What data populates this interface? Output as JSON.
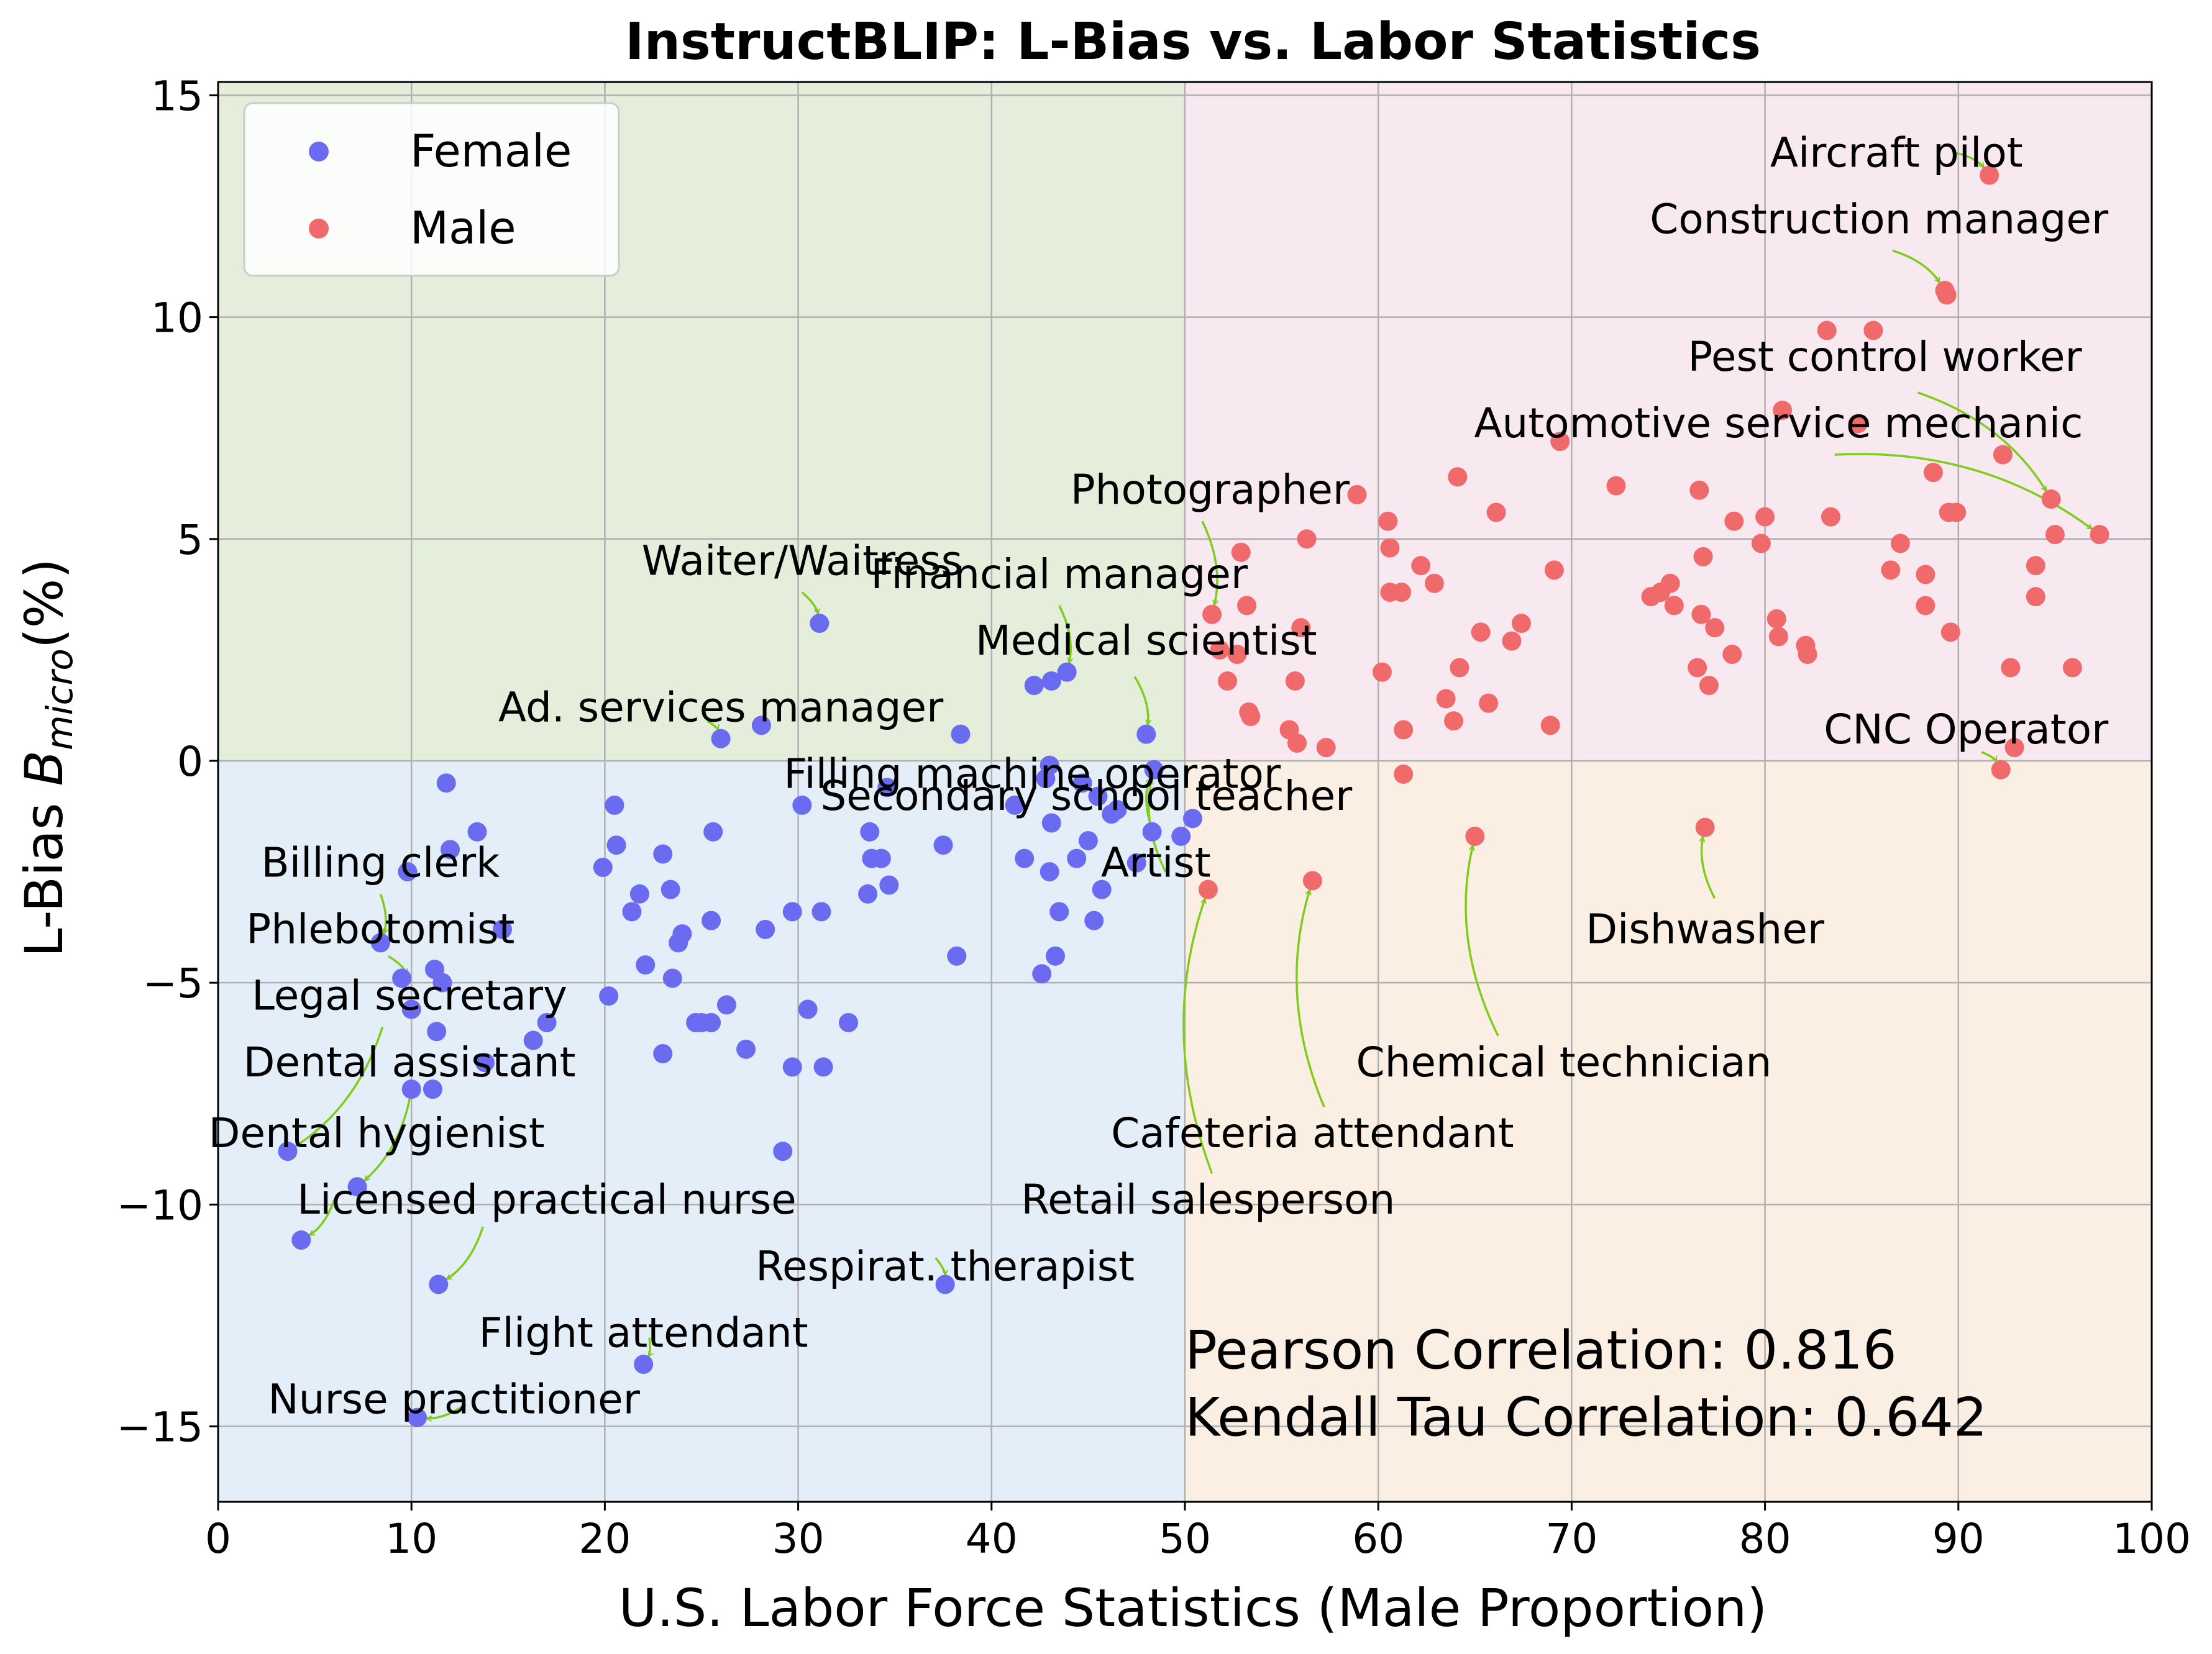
{
  "chart_data": {
    "type": "scatter",
    "title": "InstructBLIP: L-Bias vs. Labor Statistics",
    "xlabel": "U.S. Labor Force Statistics (Male Proportion)",
    "ylabel_main": "L-Bias  ",
    "ylabel_symbol": "B",
    "ylabel_sub": "micro",
    "ylabel_unit": "(%)",
    "xlim": [
      0,
      100
    ],
    "ylim": [
      -16.7,
      15.3
    ],
    "xticks": [
      0,
      10,
      20,
      30,
      40,
      50,
      60,
      70,
      80,
      90,
      100
    ],
    "yticks": [
      -15,
      -10,
      -5,
      0,
      5,
      10,
      15
    ],
    "ytick_labels": [
      "−15",
      "−10",
      "−5",
      "0",
      "5",
      "10",
      "15"
    ],
    "grid": true,
    "legend_position": "top-left",
    "quadrant_colors": {
      "top_left": "#e4eedb",
      "top_right": "#f8e8f0",
      "bottom_left": "#e3eef8",
      "bottom_right": "#faefe2"
    },
    "arrow_color": "#7fcc1a",
    "series": [
      {
        "name": "Female",
        "color": "#6b6bf2",
        "points": [
          [
            3.6,
            -8.8
          ],
          [
            4.3,
            -10.8
          ],
          [
            7.2,
            -9.6
          ],
          [
            8.4,
            -4.1
          ],
          [
            9.5,
            -4.9
          ],
          [
            9.8,
            -2.5
          ],
          [
            10.0,
            -5.6
          ],
          [
            10.0,
            -7.4
          ],
          [
            10.3,
            -14.8
          ],
          [
            11.1,
            -7.4
          ],
          [
            11.2,
            -4.7
          ],
          [
            11.3,
            -6.1
          ],
          [
            11.4,
            -11.8
          ],
          [
            11.6,
            -5.0
          ],
          [
            11.8,
            -0.5
          ],
          [
            12.0,
            -2.0
          ],
          [
            13.4,
            -1.6
          ],
          [
            13.8,
            -6.8
          ],
          [
            14.7,
            -3.8
          ],
          [
            16.3,
            -6.3
          ],
          [
            17.0,
            -5.9
          ],
          [
            19.9,
            -2.4
          ],
          [
            20.2,
            -5.3
          ],
          [
            20.5,
            -1.0
          ],
          [
            20.6,
            -1.9
          ],
          [
            21.4,
            -3.4
          ],
          [
            21.8,
            -3.0
          ],
          [
            22.0,
            -13.6
          ],
          [
            22.1,
            -4.6
          ],
          [
            23.0,
            -6.6
          ],
          [
            23.0,
            -2.1
          ],
          [
            23.4,
            -2.9
          ],
          [
            23.5,
            -4.9
          ],
          [
            23.8,
            -4.1
          ],
          [
            24.0,
            -3.9
          ],
          [
            24.7,
            -5.9
          ],
          [
            25.0,
            -5.9
          ],
          [
            25.5,
            -3.6
          ],
          [
            25.5,
            -5.9
          ],
          [
            25.6,
            -1.6
          ],
          [
            26.0,
            0.5
          ],
          [
            26.3,
            -5.5
          ],
          [
            27.3,
            -6.5
          ],
          [
            28.1,
            0.8
          ],
          [
            28.3,
            -3.8
          ],
          [
            29.2,
            -8.8
          ],
          [
            29.7,
            -6.9
          ],
          [
            29.7,
            -3.4
          ],
          [
            30.2,
            -1.0
          ],
          [
            30.5,
            -5.6
          ],
          [
            31.1,
            3.1
          ],
          [
            31.2,
            -3.4
          ],
          [
            31.3,
            -6.9
          ],
          [
            32.6,
            -5.9
          ],
          [
            33.6,
            -3.0
          ],
          [
            33.7,
            -1.6
          ],
          [
            33.8,
            -2.2
          ],
          [
            34.3,
            -2.2
          ],
          [
            34.6,
            -0.6
          ],
          [
            34.7,
            -2.8
          ],
          [
            37.5,
            -1.9
          ],
          [
            37.6,
            -11.8
          ],
          [
            38.2,
            -4.4
          ],
          [
            38.4,
            0.6
          ],
          [
            41.2,
            -1.0
          ],
          [
            41.7,
            -2.2
          ],
          [
            42.2,
            1.7
          ],
          [
            42.6,
            -4.8
          ],
          [
            42.8,
            -0.4
          ],
          [
            43.0,
            -2.5
          ],
          [
            43.1,
            1.8
          ],
          [
            43.1,
            -1.4
          ],
          [
            43.3,
            -4.4
          ],
          [
            43.5,
            -3.4
          ],
          [
            43.9,
            2.0
          ],
          [
            44.4,
            -2.2
          ],
          [
            44.7,
            -0.5
          ],
          [
            45.0,
            -1.8
          ],
          [
            45.3,
            -3.6
          ],
          [
            45.5,
            -0.8
          ],
          [
            45.7,
            -2.9
          ],
          [
            46.2,
            -1.2
          ],
          [
            46.5,
            -1.1
          ],
          [
            47.5,
            -2.3
          ],
          [
            48.3,
            -1.6
          ],
          [
            48.4,
            -0.2
          ],
          [
            49.8,
            -1.7
          ],
          [
            50.4,
            -1.3
          ],
          [
            48.0,
            0.6
          ],
          [
            43.0,
            -0.1
          ]
        ]
      },
      {
        "name": "Male",
        "color": "#f06a6c",
        "points": [
          [
            51.2,
            -2.9
          ],
          [
            51.4,
            3.3
          ],
          [
            51.8,
            2.5
          ],
          [
            52.2,
            1.8
          ],
          [
            52.7,
            2.4
          ],
          [
            52.9,
            4.7
          ],
          [
            53.2,
            3.5
          ],
          [
            53.3,
            1.1
          ],
          [
            53.4,
            1.0
          ],
          [
            55.4,
            0.7
          ],
          [
            55.7,
            1.8
          ],
          [
            55.8,
            0.4
          ],
          [
            56.0,
            3.0
          ],
          [
            56.3,
            5.0
          ],
          [
            56.6,
            -2.7
          ],
          [
            57.3,
            0.3
          ],
          [
            58.9,
            6.0
          ],
          [
            60.2,
            2.0
          ],
          [
            60.5,
            5.4
          ],
          [
            60.6,
            4.8
          ],
          [
            60.6,
            3.8
          ],
          [
            61.2,
            3.8
          ],
          [
            61.3,
            0.7
          ],
          [
            61.3,
            -0.3
          ],
          [
            62.2,
            4.4
          ],
          [
            62.9,
            4.0
          ],
          [
            63.5,
            1.4
          ],
          [
            63.9,
            0.9
          ],
          [
            64.1,
            6.4
          ],
          [
            64.2,
            2.1
          ],
          [
            65.0,
            -1.7
          ],
          [
            65.3,
            2.9
          ],
          [
            65.7,
            1.3
          ],
          [
            66.1,
            5.6
          ],
          [
            66.9,
            2.7
          ],
          [
            67.4,
            3.1
          ],
          [
            68.9,
            0.8
          ],
          [
            69.1,
            4.3
          ],
          [
            69.4,
            7.2
          ],
          [
            72.3,
            6.2
          ],
          [
            74.1,
            3.7
          ],
          [
            74.6,
            3.8
          ],
          [
            75.1,
            4.0
          ],
          [
            75.3,
            3.5
          ],
          [
            76.5,
            2.1
          ],
          [
            76.6,
            6.1
          ],
          [
            76.7,
            3.3
          ],
          [
            76.8,
            4.6
          ],
          [
            76.9,
            -1.5
          ],
          [
            77.1,
            1.7
          ],
          [
            77.4,
            3.0
          ],
          [
            78.3,
            2.4
          ],
          [
            78.4,
            5.4
          ],
          [
            79.8,
            4.9
          ],
          [
            80.0,
            5.5
          ],
          [
            80.6,
            3.2
          ],
          [
            80.7,
            2.8
          ],
          [
            80.9,
            7.9
          ],
          [
            82.1,
            2.6
          ],
          [
            82.2,
            2.4
          ],
          [
            83.2,
            9.7
          ],
          [
            83.4,
            5.5
          ],
          [
            84.8,
            7.6
          ],
          [
            85.6,
            9.7
          ],
          [
            86.5,
            4.3
          ],
          [
            87.0,
            4.9
          ],
          [
            88.3,
            3.5
          ],
          [
            88.3,
            4.2
          ],
          [
            88.7,
            6.5
          ],
          [
            89.3,
            10.6
          ],
          [
            89.4,
            10.5
          ],
          [
            89.5,
            5.6
          ],
          [
            89.6,
            2.9
          ],
          [
            89.9,
            5.6
          ],
          [
            91.6,
            13.2
          ],
          [
            92.2,
            -0.2
          ],
          [
            92.3,
            6.9
          ],
          [
            92.7,
            2.1
          ],
          [
            92.9,
            0.3
          ],
          [
            94.0,
            3.7
          ],
          [
            94.0,
            4.4
          ],
          [
            94.8,
            5.9
          ],
          [
            95.0,
            5.1
          ],
          [
            95.9,
            2.1
          ],
          [
            97.3,
            5.1
          ]
        ]
      }
    ],
    "annotations": [
      {
        "text": "Aircraft pilot",
        "text_x": 86.8,
        "text_y": 13.7,
        "x": 91.6,
        "y": 13.2,
        "ax0": 89.9,
        "ay0": 13.7
      },
      {
        "text": "Construction manager",
        "text_x": 85.9,
        "text_y": 12.2,
        "x": 89.3,
        "y": 10.6,
        "ax0": 86.6,
        "ay0": 11.5
      },
      {
        "text": "Pest control worker",
        "text_x": 86.2,
        "text_y": 9.1,
        "x": 94.8,
        "y": 5.9,
        "ax0": 87.9,
        "ay0": 8.3
      },
      {
        "text": "Automotive service mechanic",
        "text_x": 80.7,
        "text_y": 7.6,
        "x": 97.3,
        "y": 5.1,
        "ax0": 83.6,
        "ay0": 6.9
      },
      {
        "text": "Photographer",
        "text_x": 51.3,
        "text_y": 6.1,
        "x": 51.4,
        "y": 3.3,
        "ax0": 50.9,
        "ay0": 5.4
      },
      {
        "text": "Waiter/Waitress",
        "text_x": 30.2,
        "text_y": 4.5,
        "x": 31.1,
        "y": 3.1,
        "ax0": 30.2,
        "ay0": 3.8
      },
      {
        "text": "Financial manager",
        "text_x": 43.5,
        "text_y": 4.2,
        "x": 43.9,
        "y": 2.0,
        "ax0": 43.5,
        "ay0": 3.5
      },
      {
        "text": "Medical scientist",
        "text_x": 48.0,
        "text_y": 2.7,
        "x": 48.0,
        "y": 0.6,
        "ax0": 47.4,
        "ay0": 1.9
      },
      {
        "text": "Ad. services manager",
        "text_x": 26.0,
        "text_y": 1.2,
        "x": 26.0,
        "y": 0.5,
        "ax0": 25.3,
        "ay0": 0.9
      },
      {
        "text": "CNC Operator",
        "text_x": 90.4,
        "text_y": 0.7,
        "x": 92.2,
        "y": -0.2,
        "ax0": 91.2,
        "ay0": 0.2
      },
      {
        "text": "Filling machine operator",
        "text_x": 42.1,
        "text_y": -0.3,
        "x": 42.8,
        "y": -0.4,
        "ax0": 42.8,
        "ay0": -0.5
      },
      {
        "text": "Secondary school teacher",
        "text_x": 44.9,
        "text_y": -0.8,
        "x": 48.4,
        "y": -0.2,
        "ax0": 48.2,
        "ay0": -1.4
      },
      {
        "text": "Artist",
        "text_x": 48.5,
        "text_y": -2.3,
        "x": 48.4,
        "y": -0.2,
        "ax0": 49.0,
        "ay0": -2.5
      },
      {
        "text": "Billing clerk",
        "text_x": 8.4,
        "text_y": -2.3,
        "x": 8.4,
        "y": -4.1,
        "ax0": 8.4,
        "ay0": -3.0
      },
      {
        "text": "Phlebotomist",
        "text_x": 8.4,
        "text_y": -3.8,
        "x": 9.9,
        "y": -5.0,
        "ax0": 8.8,
        "ay0": -4.4
      },
      {
        "text": "Legal secretary",
        "text_x": 9.9,
        "text_y": -5.3,
        "x": 3.6,
        "y": -8.8,
        "ax0": 8.5,
        "ay0": -6.0
      },
      {
        "text": "Dental assistant",
        "text_x": 9.9,
        "text_y": -6.8,
        "x": 7.2,
        "y": -9.6,
        "ax0": 10.0,
        "ay0": -7.4
      },
      {
        "text": "Dental hygienist",
        "text_x": 8.2,
        "text_y": -8.4,
        "x": 4.3,
        "y": -10.8,
        "ax0": 6.0,
        "ay0": -9.9
      },
      {
        "text": "Licensed practical nurse",
        "text_x": 17.0,
        "text_y": -9.9,
        "x": 11.4,
        "y": -11.8,
        "ax0": 13.7,
        "ay0": -10.5
      },
      {
        "text": "Respirat. therapist",
        "text_x": 37.6,
        "text_y": -11.4,
        "x": 37.6,
        "y": -11.8,
        "ax0": 37.1,
        "ay0": -11.2
      },
      {
        "text": "Flight attendant",
        "text_x": 22.0,
        "text_y": -12.9,
        "x": 22.0,
        "y": -13.6,
        "ax0": 22.3,
        "ay0": -13.0
      },
      {
        "text": "Nurse practitioner",
        "text_x": 12.2,
        "text_y": -14.4,
        "x": 10.3,
        "y": -14.8,
        "ax0": 12.8,
        "ay0": -14.5
      },
      {
        "text": "Dishwasher",
        "text_x": 76.9,
        "text_y": -3.8,
        "x": 76.9,
        "y": -1.5,
        "ax0": 77.4,
        "ay0": -3.1
      },
      {
        "text": "Chemical technician",
        "text_x": 69.6,
        "text_y": -6.8,
        "x": 65.0,
        "y": -1.7,
        "ax0": 66.2,
        "ay0": -6.2
      },
      {
        "text": "Cafeteria attendant",
        "text_x": 56.6,
        "text_y": -8.4,
        "x": 56.6,
        "y": -2.7,
        "ax0": 57.2,
        "ay0": -7.8
      },
      {
        "text": "Retail salesperson",
        "text_x": 51.2,
        "text_y": -9.9,
        "x": 51.2,
        "y": -2.9,
        "ax0": 51.4,
        "ay0": -9.3
      }
    ],
    "stats_text": [
      "Pearson Correlation: 0.816",
      "Kendall Tau Correlation: 0.642"
    ]
  }
}
